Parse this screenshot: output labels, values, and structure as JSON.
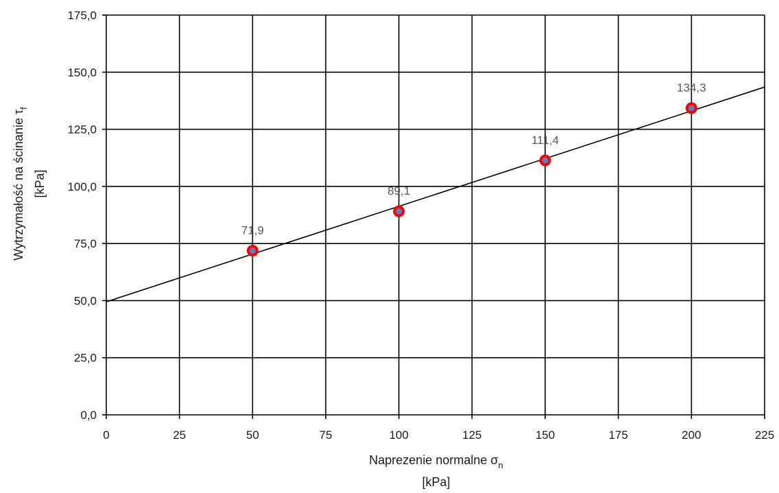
{
  "chart_data": {
    "type": "scatter",
    "x": [
      50,
      100,
      150,
      200
    ],
    "values": [
      71.9,
      89.1,
      111.4,
      134.3
    ],
    "data_labels": [
      "71,9",
      "89,1",
      "111,4",
      "134,3"
    ],
    "xlabel": {
      "main": "Naprezenie normalne σ",
      "subscript": "n",
      "unit": "[kPa]"
    },
    "ylabel": {
      "main": "Wytrzymałość na ścinanie τ",
      "subscript": "f",
      "unit": "[kPa]"
    },
    "xlim": [
      0,
      225
    ],
    "ylim": [
      0,
      175
    ],
    "x_ticks": [
      0,
      25,
      50,
      75,
      100,
      125,
      150,
      175,
      200,
      225
    ],
    "x_tick_labels": [
      "0",
      "25",
      "50",
      "75",
      "100",
      "125",
      "150",
      "175",
      "200",
      "225"
    ],
    "y_ticks": [
      0,
      25,
      50,
      75,
      100,
      125,
      150,
      175
    ],
    "y_tick_labels": [
      "0,0",
      "25,0",
      "50,0",
      "75,0",
      "100,0",
      "125,0",
      "150,0",
      "175,0"
    ],
    "trendline": {
      "type": "linear",
      "x": [
        0,
        225
      ],
      "y": [
        49.5,
        143.5
      ]
    },
    "grid": true,
    "legend": false,
    "colors": {
      "marker_fill": "#5b7fbf",
      "marker_edge": "#ff0000",
      "line": "#000000",
      "grid": "#000000"
    }
  }
}
